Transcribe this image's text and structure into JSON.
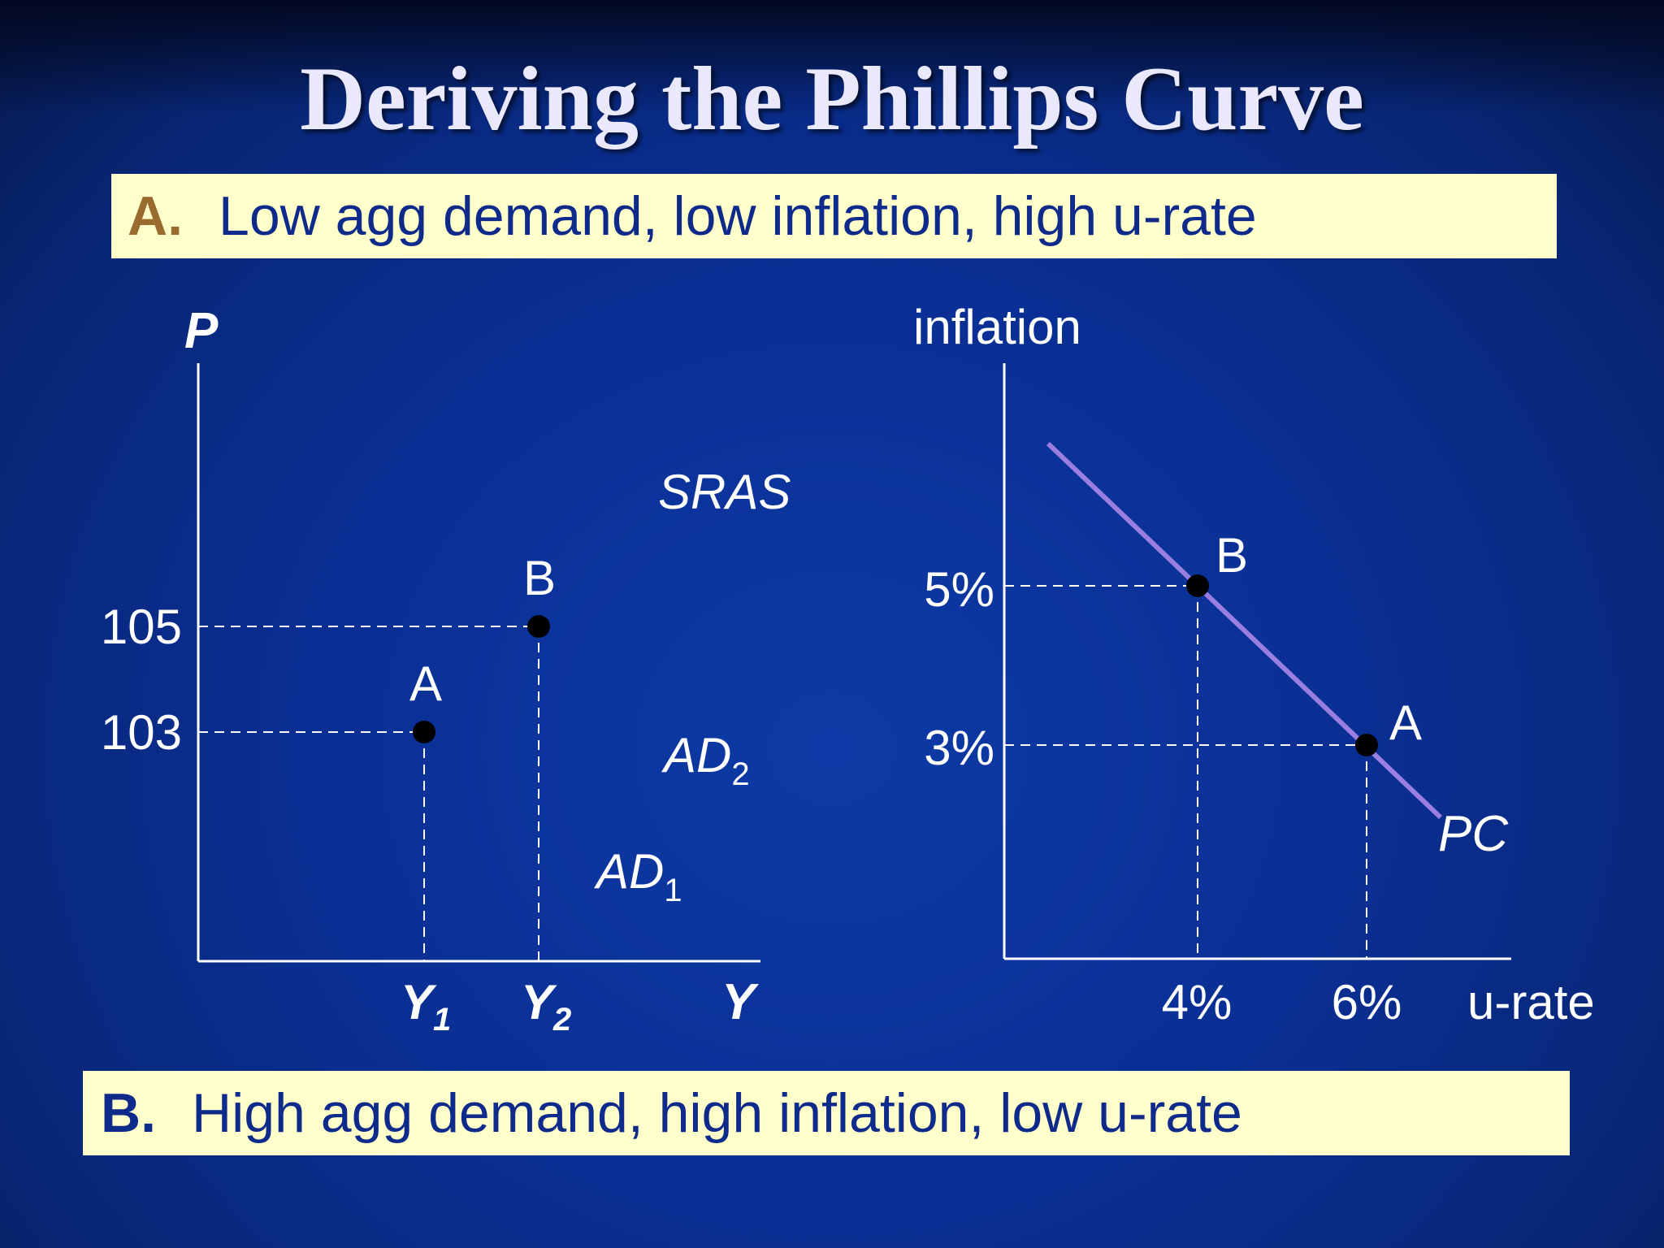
{
  "title": "Deriving the Phillips Curve",
  "caption_a": {
    "letter": "A.",
    "text": "Low agg demand, low inflation, high u-rate"
  },
  "caption_b": {
    "letter": "B.",
    "text": "High agg demand, high inflation, low u-rate"
  },
  "left_diagram": {
    "y_axis_label": "P",
    "x_axis_label": "Y",
    "price_ticks": [
      "105",
      "103"
    ],
    "output_ticks": [
      {
        "main": "Y",
        "sub": "1"
      },
      {
        "main": "Y",
        "sub": "2"
      }
    ],
    "curve_labels": {
      "sras": "SRAS",
      "ad2": {
        "main": "AD",
        "sub": "2"
      },
      "ad1": {
        "main": "AD",
        "sub": "1"
      }
    },
    "points": [
      {
        "label": "A",
        "P": 103,
        "Y": "Y1"
      },
      {
        "label": "B",
        "P": 105,
        "Y": "Y2"
      }
    ]
  },
  "right_diagram": {
    "y_axis_label": "inflation",
    "x_axis_label": "u-rate",
    "inflation_ticks": [
      "5%",
      "3%"
    ],
    "urate_ticks": [
      "4%",
      "6%"
    ],
    "curve_label": "PC",
    "curve_color": "#9b7fe0",
    "points": [
      {
        "label": "B",
        "inflation": "5%",
        "u_rate": "4%"
      },
      {
        "label": "A",
        "inflation": "3%",
        "u_rate": "6%"
      }
    ]
  }
}
